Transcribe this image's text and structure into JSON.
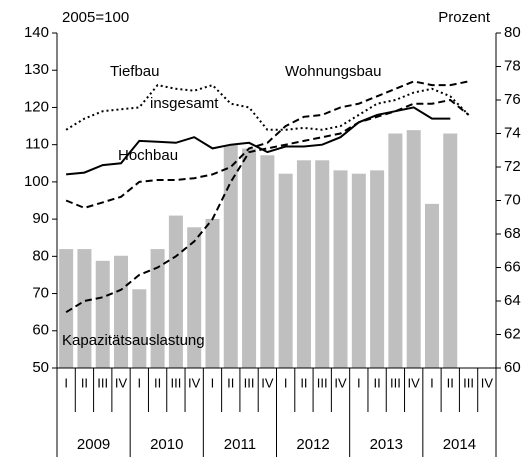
{
  "chart_data": {
    "type": "bar_line",
    "ylabel": "2005=100",
    "y2label": "Prozent",
    "categories": [
      "I",
      "II",
      "III",
      "IV",
      "I",
      "II",
      "III",
      "IV",
      "I",
      "II",
      "III",
      "IV",
      "I",
      "II",
      "III",
      "IV",
      "I",
      "II",
      "III",
      "IV",
      "I",
      "II",
      "III",
      "IV"
    ],
    "years": [
      "2009",
      "2010",
      "2011",
      "2012",
      "2013",
      "2014"
    ],
    "ylim": [
      50,
      140
    ],
    "yticks": [
      50,
      60,
      70,
      80,
      90,
      100,
      110,
      120,
      130,
      140
    ],
    "y2lim": [
      60,
      80
    ],
    "y2ticks": [
      60,
      62,
      64,
      66,
      68,
      70,
      72,
      74,
      76,
      78,
      80
    ],
    "series": [
      {
        "name": "Kapazitätsauslastung",
        "type": "bar",
        "axis": "y2",
        "color": "#bfbfbf",
        "values": [
          67.1,
          67.1,
          66.4,
          66.7,
          64.7,
          67.1,
          69.1,
          68.4,
          68.9,
          73.3,
          73.1,
          72.7,
          71.6,
          72.4,
          72.4,
          71.8,
          71.6,
          71.8,
          74.0,
          74.2,
          69.8,
          74.0,
          null,
          null
        ]
      },
      {
        "name": "Tiefbau",
        "type": "line",
        "dash": "dotted",
        "color": "#000000",
        "values": [
          114,
          117,
          119,
          119.5,
          120,
          126,
          125,
          124.5,
          126,
          121,
          120,
          114,
          114,
          114.5,
          114,
          115,
          118,
          121,
          122,
          124,
          125,
          123,
          118,
          null
        ]
      },
      {
        "name": "insgesamt",
        "type": "line",
        "dash": "solid",
        "color": "#000000",
        "values": [
          102,
          102.5,
          104.5,
          105,
          111,
          110.8,
          110.5,
          112,
          109,
          110,
          110.5,
          108,
          109.5,
          109.5,
          110,
          112,
          116,
          118,
          119,
          120,
          117,
          117,
          null,
          null
        ]
      },
      {
        "name": "Hochbau",
        "type": "line",
        "dash": "dashed",
        "color": "#000000",
        "values": [
          95,
          93,
          94.5,
          96,
          100,
          100.5,
          100.5,
          101,
          102,
          104,
          109,
          110.5,
          115,
          117.5,
          118,
          120,
          121,
          123,
          125,
          127,
          126,
          126,
          127,
          null
        ]
      },
      {
        "name": "Wohnungsbau",
        "type": "line",
        "dash": "dashed",
        "color": "#000000",
        "values": [
          65,
          68,
          69,
          71,
          75,
          77,
          80,
          84,
          90,
          100,
          108,
          109,
          110,
          111,
          112,
          113,
          116,
          117.5,
          119,
          121,
          121,
          122,
          118,
          null
        ]
      }
    ]
  }
}
